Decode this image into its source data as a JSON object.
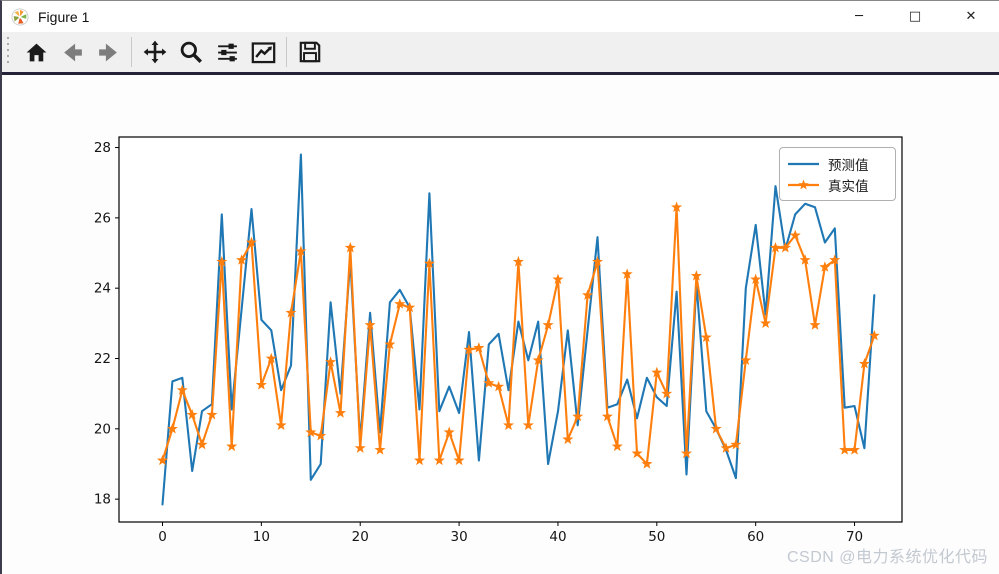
{
  "window": {
    "title": "Figure 1",
    "minimize_glyph": "─",
    "maximize_glyph": "□",
    "close_glyph": "✕"
  },
  "toolbar": {
    "icons": [
      "home-icon",
      "back-icon",
      "forward-icon",
      "pan-icon",
      "zoom-icon",
      "subplots-icon",
      "axes-editor-icon",
      "save-icon"
    ]
  },
  "chart_data": {
    "type": "line",
    "title": "",
    "xlabel": "",
    "ylabel": "",
    "x": {
      "start": 0,
      "end": 72,
      "step": 1
    },
    "xticks": [
      0,
      10,
      20,
      30,
      40,
      50,
      60,
      70
    ],
    "yticks": [
      18,
      20,
      22,
      24,
      26,
      28
    ],
    "xlim": [
      -4.4,
      74.8
    ],
    "ylim": [
      17.35,
      28.3
    ],
    "grid": false,
    "legend_position": "upper right",
    "series": [
      {
        "name": "预测值",
        "color": "#1f77b4",
        "marker": "none",
        "values": [
          17.85,
          21.35,
          21.45,
          18.8,
          20.5,
          20.7,
          26.1,
          20.55,
          23.4,
          26.25,
          23.1,
          22.8,
          21.1,
          21.8,
          27.8,
          18.55,
          19.0,
          23.6,
          21.0,
          24.8,
          19.65,
          23.3,
          19.9,
          23.6,
          23.95,
          23.45,
          20.55,
          26.7,
          20.5,
          21.2,
          20.45,
          22.75,
          19.1,
          22.4,
          22.7,
          21.1,
          23.05,
          21.95,
          23.05,
          19.0,
          20.5,
          22.8,
          20.1,
          22.8,
          25.45,
          20.6,
          20.7,
          21.4,
          20.3,
          21.45,
          20.9,
          20.65,
          23.9,
          18.7,
          24.15,
          20.5,
          20.0,
          19.4,
          18.6,
          24.0,
          25.8,
          23.25,
          26.9,
          25.1,
          26.1,
          26.4,
          26.3,
          25.3,
          25.7,
          20.6,
          20.65,
          19.45,
          23.8
        ]
      },
      {
        "name": "真实值",
        "color": "#ff7f0e",
        "marker": "star",
        "values": [
          19.1,
          20.0,
          21.1,
          20.4,
          19.55,
          20.4,
          24.75,
          19.5,
          24.8,
          25.3,
          21.25,
          22.0,
          20.1,
          23.3,
          25.05,
          19.9,
          19.8,
          21.9,
          20.45,
          25.15,
          19.45,
          22.95,
          19.4,
          22.4,
          23.55,
          23.45,
          19.1,
          24.7,
          19.1,
          19.9,
          19.1,
          22.25,
          22.3,
          21.3,
          21.2,
          20.1,
          24.75,
          20.1,
          21.95,
          22.95,
          24.25,
          19.7,
          20.35,
          23.8,
          24.75,
          20.35,
          19.5,
          24.4,
          19.3,
          19.0,
          21.6,
          21.0,
          26.3,
          19.3,
          24.35,
          22.6,
          20.0,
          19.45,
          19.55,
          21.95,
          24.25,
          23.0,
          25.15,
          25.15,
          25.5,
          24.8,
          22.95,
          24.6,
          24.8,
          19.4,
          19.4,
          21.85,
          22.65
        ]
      }
    ]
  },
  "watermark": {
    "text": "CSDN @电力系统优化代码",
    "color": "#c3c9d1"
  }
}
